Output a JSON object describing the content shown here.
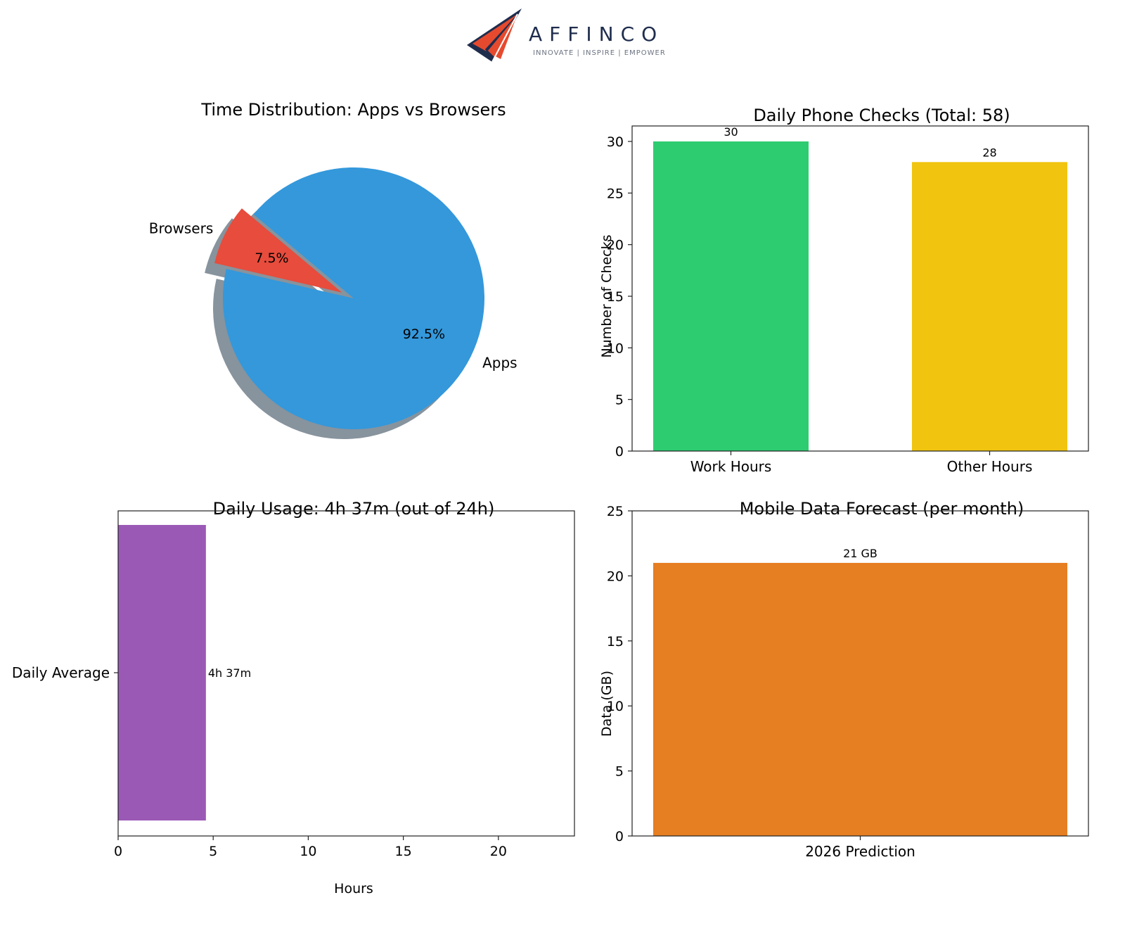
{
  "brand": {
    "name": "AFFINCO",
    "tagline": "INNOVATE | INSPIRE | EMPOWER",
    "colors": {
      "navy": "#1f2d4d",
      "red": "#e64a2e",
      "gray": "#6b7280"
    }
  },
  "chart_data": [
    {
      "type": "pie",
      "title": "Time Distribution: Apps vs Browsers",
      "slices": [
        {
          "label": "Apps",
          "value": 92.5,
          "pct_label": "92.5%",
          "color": "#3498db",
          "explode": false
        },
        {
          "label": "Browsers",
          "value": 7.5,
          "pct_label": "7.5%",
          "color": "#e74c3c",
          "explode": true
        }
      ],
      "shadow": true
    },
    {
      "type": "bar",
      "title": "Daily Phone Checks (Total: 58)",
      "categories": [
        "Work Hours",
        "Other Hours"
      ],
      "values": [
        30,
        28
      ],
      "value_labels": [
        "30",
        "28"
      ],
      "colors": [
        "#2ecc71",
        "#f1c40f"
      ],
      "ylabel": "Number of Checks",
      "ylim": [
        0,
        31.5
      ],
      "yticks": [
        0,
        5,
        10,
        15,
        20,
        25,
        30
      ]
    },
    {
      "type": "bar",
      "orientation": "horizontal",
      "title": "Daily Usage: 4h 37m (out of 24h)",
      "categories": [
        "Daily Average"
      ],
      "values": [
        4.617
      ],
      "value_labels": [
        "4h 37m"
      ],
      "colors": [
        "#9b59b6"
      ],
      "xlabel": "Hours",
      "xlim": [
        0,
        24
      ],
      "xticks": [
        0,
        5,
        10,
        15,
        20
      ]
    },
    {
      "type": "bar",
      "title": "Mobile Data Forecast (per month)",
      "categories": [
        "2026 Prediction"
      ],
      "values": [
        21
      ],
      "value_labels": [
        "21 GB"
      ],
      "colors": [
        "#e67e22"
      ],
      "ylabel": "Data (GB)",
      "ylim": [
        0,
        25
      ],
      "yticks": [
        0,
        5,
        10,
        15,
        20,
        25
      ]
    }
  ]
}
